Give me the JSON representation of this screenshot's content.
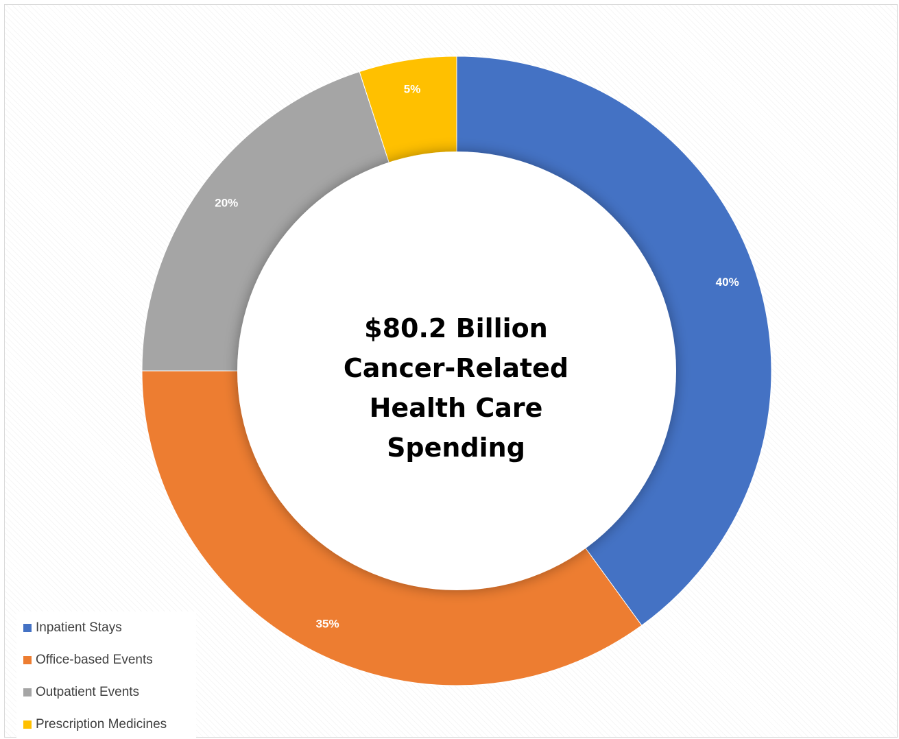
{
  "chart_data": {
    "type": "pie",
    "donut": true,
    "center_title": [
      "$80.2 Billion",
      "Cancer-Related",
      "Health Care",
      "Spending"
    ],
    "categories": [
      "Inpatient Stays",
      "Office-based Events",
      "Outpatient Events",
      "Prescription Medicines"
    ],
    "values": [
      40,
      35,
      20,
      5
    ],
    "data_labels": [
      "40%",
      "35%",
      "20%",
      "5%"
    ],
    "colors": [
      "#4472C4",
      "#ED7D31",
      "#A5A5A5",
      "#FFC000"
    ],
    "legend_position": "bottom-left",
    "start": "12 o'clock, clockwise"
  }
}
